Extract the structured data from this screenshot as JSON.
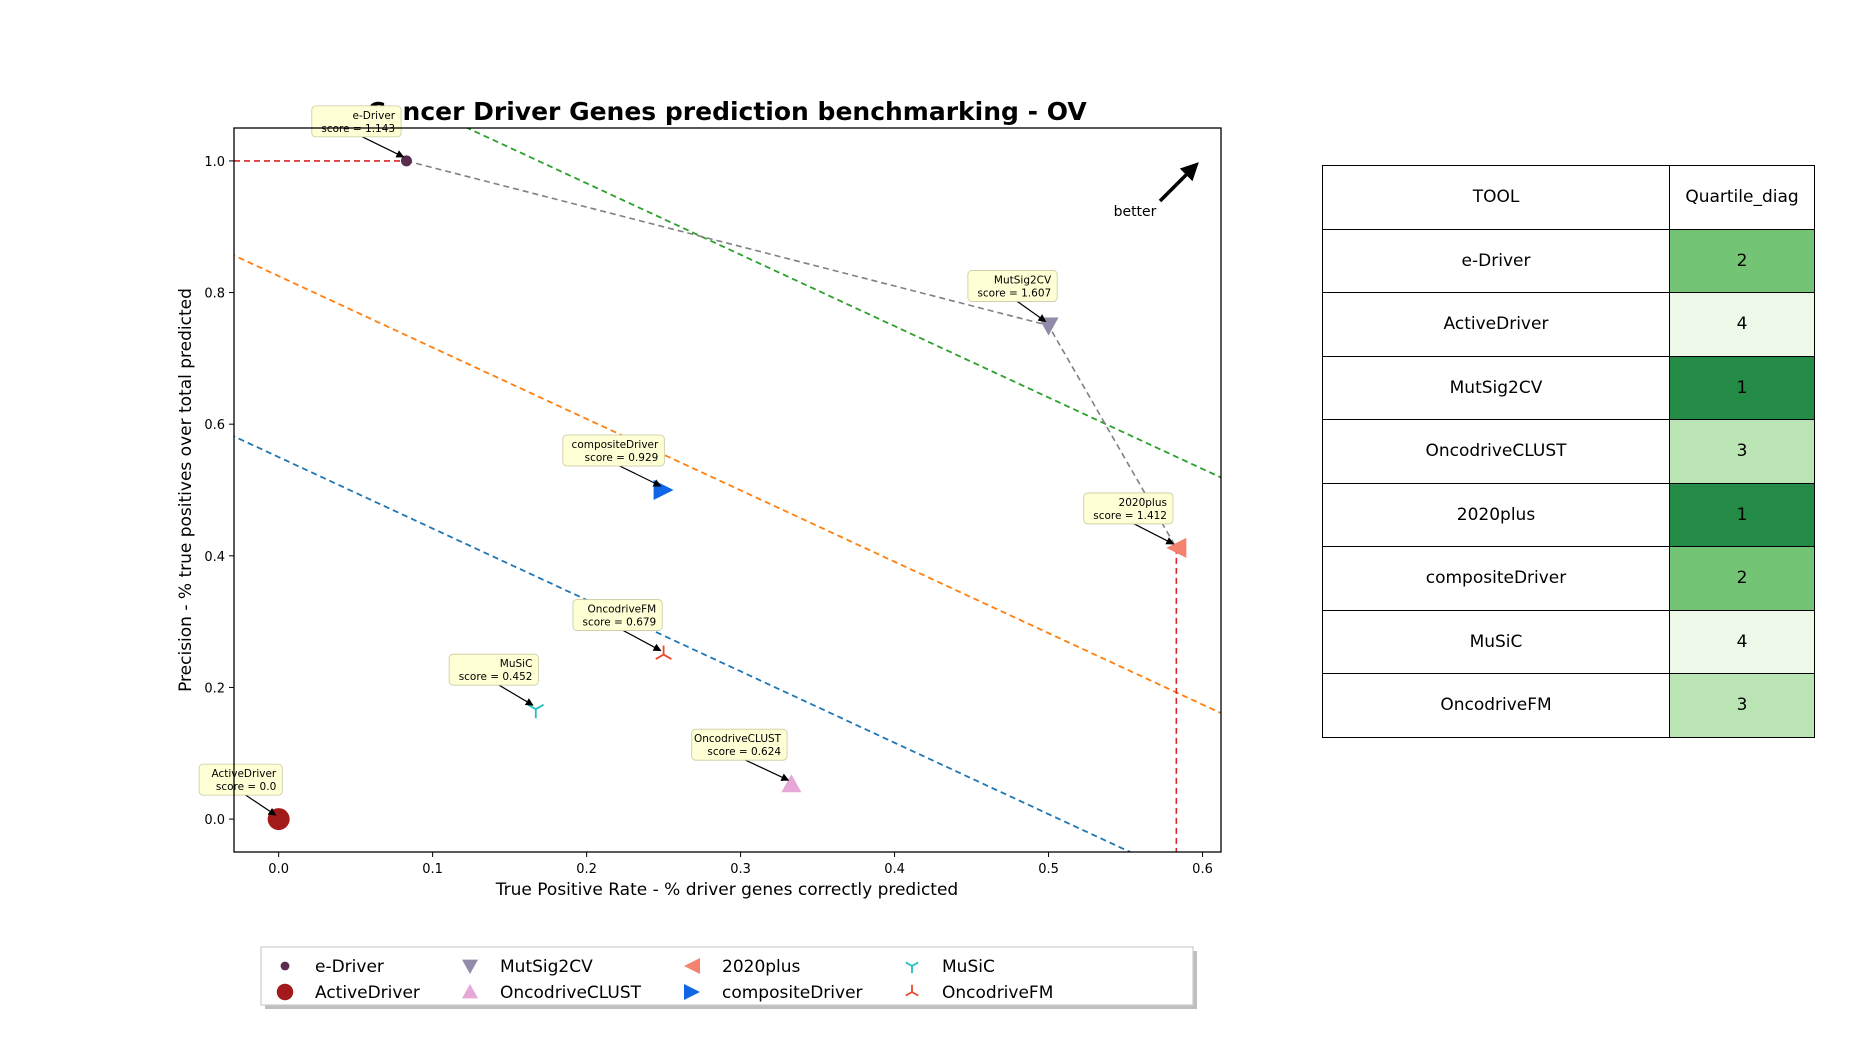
{
  "chart_data": {
    "type": "scatter",
    "title": "Cancer Driver Genes prediction benchmarking - OV",
    "xlabel": "True Positive Rate - % driver genes correctly predicted",
    "ylabel": "Precision - % true positives over total predicted",
    "xlim": [
      -0.029,
      0.612
    ],
    "ylim": [
      -0.05,
      1.05
    ],
    "xticks": [
      "0.0",
      "0.1",
      "0.2",
      "0.3",
      "0.4",
      "0.5",
      "0.6"
    ],
    "yticks": [
      "0.0",
      "0.2",
      "0.4",
      "0.6",
      "0.8",
      "1.0"
    ],
    "better_label": "better",
    "points": [
      {
        "name": "e-Driver",
        "x": 0.083,
        "y": 1.0,
        "label": "e-Driver",
        "score": "score = 1.143",
        "marker": "dot",
        "color": "#5a2d4f"
      },
      {
        "name": "ActiveDriver",
        "x": 0.0,
        "y": 0.0,
        "label": "ActiveDriver",
        "score": "score = 0.0",
        "marker": "circle",
        "color": "#a31a1a"
      },
      {
        "name": "MutSig2CV",
        "x": 0.5,
        "y": 0.75,
        "label": "MutSig2CV",
        "score": "score = 1.607",
        "marker": "triangle-down",
        "color": "#9389a8"
      },
      {
        "name": "OncodriveCLUST",
        "x": 0.333,
        "y": 0.053,
        "label": "OncodriveCLUST",
        "score": "score = 0.624",
        "marker": "triangle-up",
        "color": "#e6a8d6"
      },
      {
        "name": "2020plus",
        "x": 0.583,
        "y": 0.412,
        "label": "2020plus",
        "score": "score = 1.412",
        "marker": "triangle-left",
        "color": "#f5826e"
      },
      {
        "name": "compositeDriver",
        "x": 0.25,
        "y": 0.5,
        "label": "compositeDriver",
        "score": "score = 0.929",
        "marker": "triangle-right",
        "color": "#1066e6"
      },
      {
        "name": "MuSiC",
        "x": 0.167,
        "y": 0.167,
        "label": "MuSiC",
        "score": "score = 0.452",
        "marker": "tri-down",
        "color": "#22bfbf"
      },
      {
        "name": "OncodriveFM",
        "x": 0.25,
        "y": 0.25,
        "label": "OncodriveFM",
        "score": "score = 0.679",
        "marker": "tri-up",
        "color": "#e64a2e"
      }
    ],
    "pareto_front": [
      [
        0.083,
        1.0
      ],
      [
        0.5,
        0.75
      ],
      [
        0.583,
        0.412
      ]
    ],
    "diagonal_lines": [
      {
        "color": "#1f77b4",
        "intercept": 0.55
      },
      {
        "color": "#ff7f0e",
        "intercept": 0.825
      },
      {
        "color": "#2ca02c",
        "intercept": 1.183
      }
    ],
    "legend": {
      "placement": "bottom",
      "entries": [
        "e-Driver",
        "ActiveDriver",
        "MutSig2CV",
        "OncodriveCLUST",
        "2020plus",
        "compositeDriver",
        "MuSiC",
        "OncodriveFM"
      ]
    }
  },
  "table": {
    "headers": [
      "TOOL",
      "Quartile_diag"
    ],
    "rows": [
      {
        "tool": "e-Driver",
        "quartile": "2"
      },
      {
        "tool": "ActiveDriver",
        "quartile": "4"
      },
      {
        "tool": "MutSig2CV",
        "quartile": "1"
      },
      {
        "tool": "OncodriveCLUST",
        "quartile": "3"
      },
      {
        "tool": "2020plus",
        "quartile": "1"
      },
      {
        "tool": "compositeDriver",
        "quartile": "2"
      },
      {
        "tool": "MuSiC",
        "quartile": "4"
      },
      {
        "tool": "OncodriveFM",
        "quartile": "3"
      }
    ],
    "quartile_colors": {
      "1": "#238b45",
      "2": "#74c476",
      "3": "#bae4b3",
      "4": "#edf8e9"
    }
  }
}
